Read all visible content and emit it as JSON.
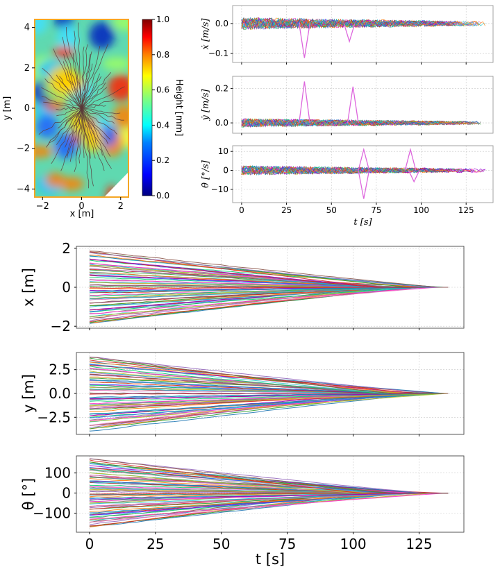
{
  "colors": {
    "trajectory_palette": [
      "#1f77b4",
      "#ff7f0e",
      "#2ca02c",
      "#d62728",
      "#9467bd",
      "#8c564b",
      "#e377c2",
      "#17becf",
      "#bcbd22",
      "#7f7f7f",
      "#ff33cc",
      "#00cc66",
      "#3366ff",
      "#cc3300",
      "#9900cc",
      "#33cccc"
    ],
    "heightmap_cmap": [
      "#00007f",
      "#0000ff",
      "#007fff",
      "#00ffff",
      "#7fff7f",
      "#ffff00",
      "#ff7f00",
      "#ff0000",
      "#7f0000"
    ],
    "map_frame": "#f5a623"
  },
  "chart_data": [
    {
      "id": "height_map",
      "type": "heatmap",
      "xlabel": "x [m]",
      "ylabel": "y [m]",
      "xlim": [
        -2.4,
        2.4
      ],
      "ylim": [
        -4.4,
        4.4
      ],
      "xticks": [
        -2,
        0,
        2
      ],
      "yticks": [
        -4,
        -2,
        0,
        2,
        4
      ],
      "colorbar": {
        "label": "Height [mm]",
        "range": [
          0.0,
          1.0
        ],
        "ticks": [
          "0.0",
          "0.2",
          "0.4",
          "0.6",
          "0.8",
          "1.0"
        ]
      },
      "converge_point": [
        0,
        0
      ],
      "num_trajectories": 60,
      "notes": "Dark trajectory paths radiate from the center point to starting positions near the map edges"
    },
    {
      "id": "xdot",
      "type": "line",
      "ylabel": "ẋ [m/s]",
      "xlim": [
        -5,
        140
      ],
      "ylim": [
        -0.13,
        0.06
      ],
      "yticks": [
        0.0,
        -0.1
      ],
      "ytick_labels": [
        "0.0",
        "−0.1"
      ],
      "xticks": [
        0,
        25,
        50,
        75,
        100,
        125
      ],
      "grid": true,
      "noise_amplitude": 0.02,
      "spikes": [
        [
          35,
          -0.115
        ],
        [
          60,
          -0.06
        ]
      ]
    },
    {
      "id": "ydot",
      "type": "line",
      "ylabel": "ẏ [m/s]",
      "xlim": [
        -5,
        140
      ],
      "ylim": [
        -0.06,
        0.27
      ],
      "yticks": [
        0.0,
        0.2
      ],
      "ytick_labels": [
        "0.0",
        "0.2"
      ],
      "xticks": [
        0,
        25,
        50,
        75,
        100,
        125
      ],
      "grid": true,
      "noise_amplitude": 0.025,
      "spikes": [
        [
          35,
          0.24
        ],
        [
          62,
          0.21
        ]
      ]
    },
    {
      "id": "thetadot",
      "type": "line",
      "ylabel": "θ̇ [°/s]",
      "xlabel": "t [s]",
      "xlim": [
        -5,
        140
      ],
      "ylim": [
        -17,
        13
      ],
      "yticks": [
        10,
        0,
        -10
      ],
      "ytick_labels": [
        "10",
        "0",
        "−10"
      ],
      "xticks": [
        0,
        25,
        50,
        75,
        100,
        125
      ],
      "xtick_labels": [
        "0",
        "25",
        "50",
        "75",
        "100",
        "125"
      ],
      "grid": true,
      "noise_amplitude": 2.5,
      "spikes": [
        [
          68,
          -15
        ],
        [
          68,
          11
        ],
        [
          94,
          11
        ],
        [
          96,
          -6
        ]
      ]
    },
    {
      "id": "x_pos",
      "type": "line",
      "ylabel": "x [m]",
      "xlim": [
        -5,
        142
      ],
      "ylim": [
        -2.1,
        2.1
      ],
      "yticks": [
        2,
        0,
        -2
      ],
      "ytick_labels": [
        "2",
        "0",
        "−2"
      ],
      "xticks": [
        0,
        25,
        50,
        75,
        100,
        125
      ],
      "grid": true,
      "start_range": [
        -1.9,
        1.9
      ],
      "end_time_range": [
        105,
        136
      ],
      "end_value": 0
    },
    {
      "id": "y_pos",
      "type": "line",
      "ylabel": "y [m]",
      "xlim": [
        -5,
        142
      ],
      "ylim": [
        -4.3,
        4.3
      ],
      "yticks": [
        2.5,
        0.0,
        -2.5
      ],
      "ytick_labels": [
        "2.5",
        "0.0",
        "−2.5"
      ],
      "xticks": [
        0,
        25,
        50,
        75,
        100,
        125
      ],
      "grid": true,
      "start_range": [
        -3.9,
        3.9
      ],
      "end_time_range": [
        110,
        136
      ],
      "end_value": 0
    },
    {
      "id": "theta_pos",
      "type": "line",
      "ylabel": "θ [°]",
      "xlabel": "t [s]",
      "xlim": [
        -5,
        142
      ],
      "ylim": [
        -195,
        185
      ],
      "yticks": [
        100,
        0,
        -100
      ],
      "ytick_labels": [
        "100",
        "0",
        "−100"
      ],
      "xticks": [
        0,
        25,
        50,
        75,
        100,
        125
      ],
      "xtick_labels": [
        "0",
        "25",
        "50",
        "75",
        "100",
        "125"
      ],
      "grid": true,
      "start_range": [
        -175,
        170
      ],
      "end_time_range": [
        100,
        136
      ],
      "end_value": 0
    }
  ]
}
